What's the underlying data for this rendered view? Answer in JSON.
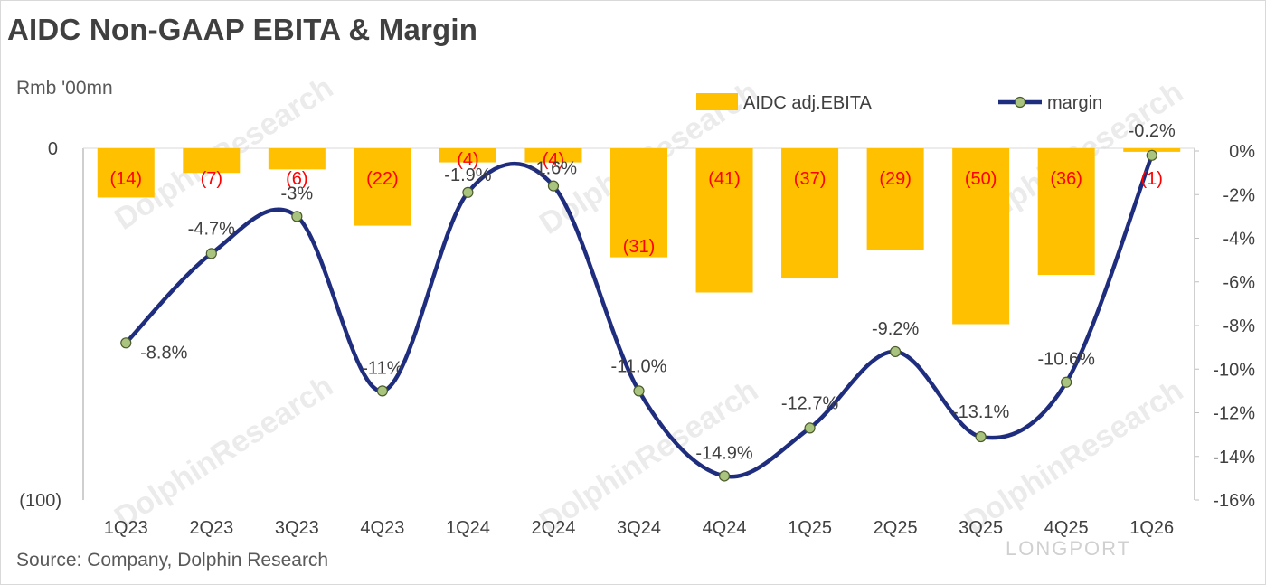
{
  "header": {
    "title": "AIDC Non-GAAP EBITA & Margin",
    "unit": "Rmb '00mn"
  },
  "footer": {
    "source": "Source: Company, Dolphin Research"
  },
  "watermark": {
    "text": "DolphinResearch",
    "logo": "LONGPORT"
  },
  "colors": {
    "bar": "#ffc000",
    "line": "#1f2d7e",
    "marker": "#a9c47f",
    "bar_label": "#ff0000",
    "text": "#404040",
    "axis": "#bfbfbf"
  },
  "chart_data": {
    "type": "bar+line",
    "categories": [
      "1Q23",
      "2Q23",
      "3Q23",
      "4Q23",
      "1Q24",
      "2Q24",
      "3Q24",
      "4Q24",
      "1Q25",
      "2Q25",
      "3Q25",
      "4Q25",
      "1Q26"
    ],
    "series": [
      {
        "name": "AIDC adj.EBITA",
        "type": "bar",
        "axis": "left",
        "values": [
          -14,
          -7,
          -6,
          -22,
          -4,
          -4,
          -31,
          -41,
          -37,
          -29,
          -50,
          -36,
          -1
        ],
        "labels": [
          "(14)",
          "(7)",
          "(6)",
          "(22)",
          "(4)",
          "(4)",
          "(31)",
          "(41)",
          "(37)",
          "(29)",
          "(50)",
          "(36)",
          "(1)"
        ]
      },
      {
        "name": "margin",
        "type": "line",
        "axis": "right",
        "values": [
          -8.8,
          -4.7,
          -3.0,
          -11.0,
          -1.9,
          -1.6,
          -11.0,
          -14.9,
          -12.7,
          -9.2,
          -13.1,
          -10.6,
          -0.2
        ],
        "labels": [
          "-8.8%",
          "-4.7%",
          "-3%",
          "-11%",
          "-1.9%",
          "-1.6%",
          "-11.0%",
          "-14.9%",
          "-12.7%",
          "-9.2%",
          "-13.1%",
          "-10.6%",
          "-0.2%"
        ]
      }
    ],
    "left_axis": {
      "ylim": [
        -100,
        0
      ],
      "tick_labels": [
        "0",
        "(100)"
      ]
    },
    "right_axis": {
      "ylim": [
        -16,
        0
      ],
      "ticks": [
        0,
        -2,
        -4,
        -6,
        -8,
        -10,
        -12,
        -14,
        -16
      ],
      "tick_labels": [
        "0%",
        "-2%",
        "-4%",
        "-6%",
        "-8%",
        "-10%",
        "-12%",
        "-14%",
        "-16%"
      ]
    },
    "legend_position": "top-right",
    "grid": false
  }
}
